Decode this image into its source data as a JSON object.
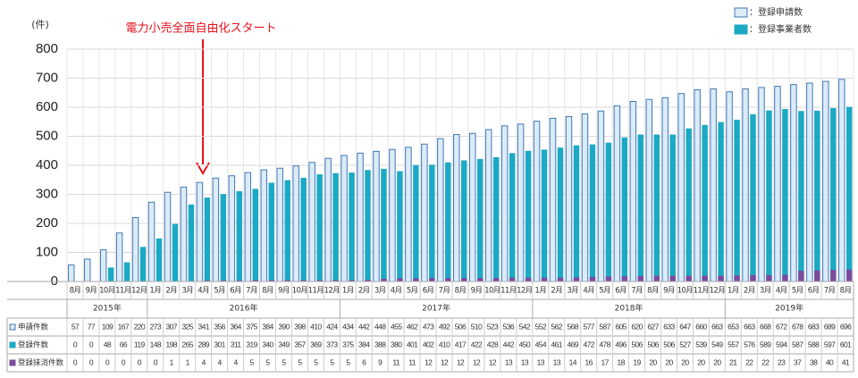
{
  "chart_data": {
    "type": "bar",
    "annotation": "電力小売全面自由化スタート",
    "y_label": "(件)",
    "ylim": [
      0,
      800
    ],
    "yticks": [
      0,
      100,
      200,
      300,
      400,
      500,
      600,
      700,
      800
    ],
    "grid": true,
    "categories": [
      "8月",
      "9月",
      "10月",
      "11月",
      "12月",
      "1月",
      "2月",
      "3月",
      "4月",
      "5月",
      "6月",
      "7月",
      "8月",
      "9月",
      "10月",
      "11月",
      "12月",
      "1月",
      "2月",
      "3月",
      "4月",
      "5月",
      "6月",
      "7月",
      "8月",
      "9月",
      "10月",
      "11月",
      "12月",
      "1月",
      "2月",
      "3月",
      "4月",
      "5月",
      "6月",
      "7月",
      "8月",
      "9月",
      "10月",
      "11月",
      "12月",
      "1月",
      "2月",
      "3月",
      "4月",
      "5月",
      "6月",
      "7月",
      "8月"
    ],
    "years": [
      "2015年",
      "2016年",
      "2017年",
      "2018年",
      "2019年"
    ],
    "series": [
      {
        "name": "申請件数",
        "legend_label": "：登録申請数",
        "color": "#dcebf8",
        "edge": "#3f78b8",
        "values": [
          57,
          77,
          109,
          167,
          220,
          273,
          307,
          325,
          341,
          356,
          364,
          375,
          384,
          390,
          398,
          410,
          424,
          434,
          442,
          448,
          455,
          462,
          473,
          492,
          506,
          510,
          523,
          536,
          542,
          552,
          562,
          568,
          577,
          587,
          605,
          620,
          627,
          633,
          647,
          660,
          663,
          653,
          663,
          668,
          672,
          678,
          683,
          689,
          696
        ]
      },
      {
        "name": "登録件数",
        "legend_label": "：登録事業者数",
        "color": "#1ba9c4",
        "values": [
          0,
          0,
          48,
          66,
          119,
          148,
          198,
          265,
          289,
          301,
          311,
          319,
          340,
          349,
          357,
          369,
          373,
          375,
          384,
          388,
          380,
          401,
          402,
          410,
          417,
          422,
          428,
          442,
          450,
          454,
          461,
          469,
          472,
          478,
          496,
          506,
          506,
          506,
          527,
          539,
          549,
          557,
          576,
          589,
          594,
          587,
          588,
          597,
          601
        ]
      },
      {
        "name": "登録抹消件数",
        "color": "#7a4c9e",
        "values": [
          0,
          0,
          0,
          0,
          0,
          0,
          1,
          1,
          4,
          4,
          4,
          5,
          5,
          5,
          5,
          5,
          5,
          5,
          6,
          9,
          11,
          11,
          12,
          12,
          12,
          12,
          12,
          13,
          13,
          13,
          13,
          14,
          16,
          17,
          18,
          19,
          20,
          20,
          20,
          20,
          20,
          21,
          22,
          22,
          23,
          37,
          38,
          40,
          41
        ]
      }
    ]
  }
}
